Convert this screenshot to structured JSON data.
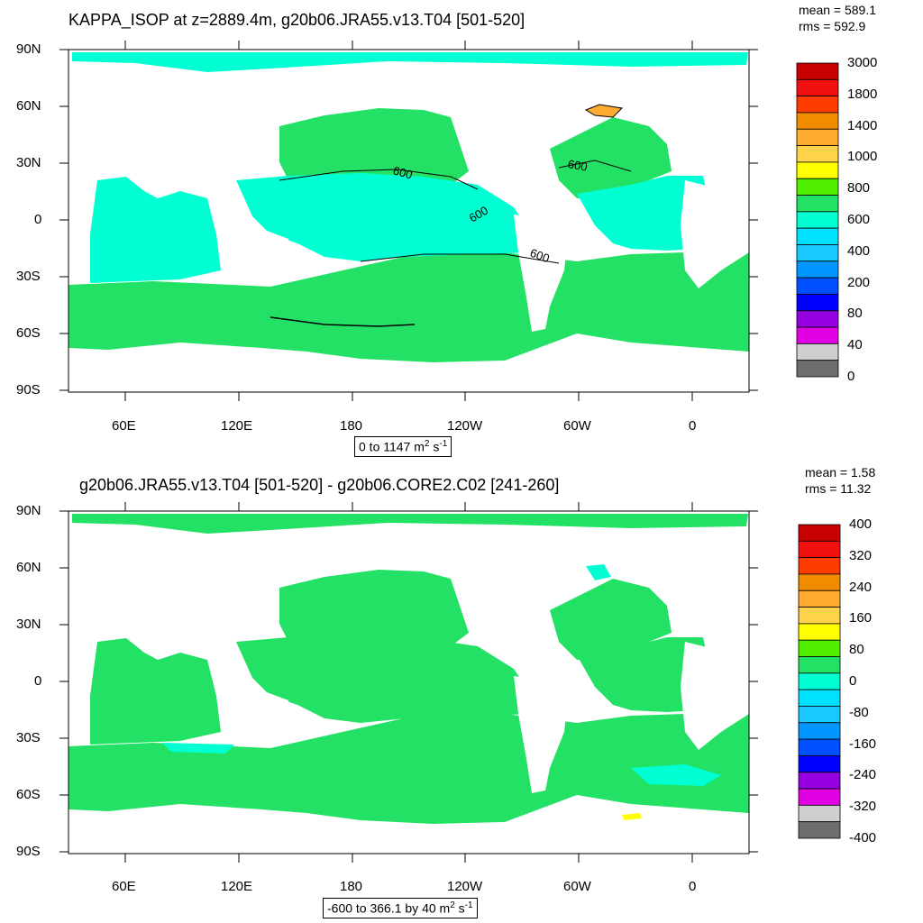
{
  "panels": [
    {
      "title": "KAPPA_ISOP at z=2889.4m, g20b06.JRA55.v13.T04 [501-520]",
      "stats": {
        "mean": "mean = 589.1",
        "rms": "rms = 592.9"
      },
      "range_label": {
        "text": "0 to 1147 m",
        "sup1": "2",
        "mid": " s",
        "sup2": "-1"
      },
      "contour_labels": [
        "600",
        "600",
        "600",
        "600"
      ],
      "colorbar": {
        "labels": [
          "3000",
          "1800",
          "1400",
          "1000",
          "800",
          "600",
          "400",
          "200",
          "80",
          "40",
          "0"
        ],
        "colors": [
          "#c80000",
          "#f01010",
          "#ff3c00",
          "#f08c00",
          "#ffaa30",
          "#ffd24b",
          "#ffff00",
          "#50f000",
          "#23e164",
          "#00ffd2",
          "#00e1ff",
          "#19c8ff",
          "#0096ff",
          "#0050ff",
          "#0000ff",
          "#9600e1",
          "#e100e1",
          "#cfcfcf",
          "#6e6e6e"
        ]
      }
    },
    {
      "title": "g20b06.JRA55.v13.T04 [501-520] - g20b06.CORE2.C02 [241-260]",
      "stats": {
        "mean": "mean = 1.58",
        "rms": "rms = 11.32"
      },
      "range_label": {
        "text": "-600 to 366.1 by 40 m",
        "sup1": "2",
        "mid": " s",
        "sup2": "-1"
      },
      "colorbar": {
        "labels": [
          "400",
          "320",
          "240",
          "160",
          "80",
          "0",
          "-80",
          "-160",
          "-240",
          "-320",
          "-400"
        ],
        "colors": [
          "#c80000",
          "#f01010",
          "#ff3c00",
          "#f08c00",
          "#ffaa30",
          "#ffd24b",
          "#ffff00",
          "#50f000",
          "#23e164",
          "#00ffd2",
          "#00e1ff",
          "#19c8ff",
          "#0096ff",
          "#0050ff",
          "#0000ff",
          "#9600e1",
          "#e100e1",
          "#cfcfcf",
          "#6e6e6e"
        ]
      }
    }
  ],
  "axes": {
    "lat_ticks": [
      "90N",
      "60N",
      "30N",
      "0",
      "30S",
      "60S",
      "90S"
    ],
    "lon_ticks": [
      "60E",
      "120E",
      "180",
      "120W",
      "60W",
      "0"
    ]
  },
  "colors": {
    "ocean_main": "#23e164",
    "ocean_alt": "#00ffd2",
    "land": "#ffffff"
  }
}
